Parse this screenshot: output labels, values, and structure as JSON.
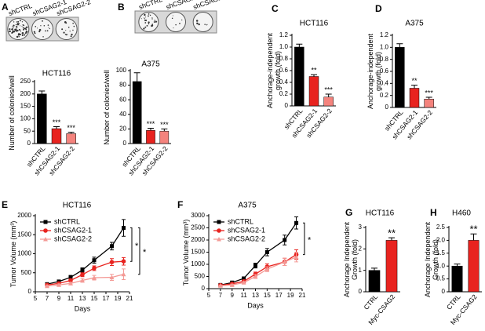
{
  "chart_data": [
    {
      "type": "bar",
      "panel": "A",
      "title": "HCT116",
      "ylabel": "Number of colonies/well",
      "well_labels": [
        "shCTRL",
        "shCSAG2-1",
        "shCSAG2-2"
      ],
      "categories": [
        "shCTRL",
        "shCSAG2-1",
        "shCSAG2-2"
      ],
      "values": [
        200,
        60,
        40
      ],
      "errors": [
        12,
        8,
        6
      ],
      "colors": [
        "#000000",
        "#e8231f",
        "#f4837d"
      ],
      "significance": [
        null,
        "***",
        "***"
      ],
      "ylim": [
        0,
        250
      ],
      "yticks": [
        0,
        50,
        100,
        150,
        200,
        250
      ]
    },
    {
      "type": "bar",
      "panel": "B",
      "title": "A375",
      "ylabel": "Number of colonies/well",
      "well_labels": [
        "shCTRL",
        "shCSAG2-1",
        "shCSAG2-2"
      ],
      "categories": [
        "shCTRL",
        "shCSAG2-1",
        "shCSAG2-2"
      ],
      "values": [
        85,
        18,
        17
      ],
      "errors": [
        12,
        3,
        3
      ],
      "colors": [
        "#000000",
        "#e8231f",
        "#f4837d"
      ],
      "significance": [
        null,
        "***",
        "***"
      ],
      "ylim": [
        0,
        100
      ],
      "yticks": [
        0,
        20,
        40,
        60,
        80,
        100
      ]
    },
    {
      "type": "bar",
      "panel": "C",
      "title": "HCT116",
      "ylabel": "Anchorage-independent growth (fold)",
      "categories": [
        "shCTRL",
        "shCSAG2-1",
        "shCSAG2-2"
      ],
      "values": [
        1.0,
        0.5,
        0.15
      ],
      "errors": [
        0.05,
        0.03,
        0.05
      ],
      "colors": [
        "#000000",
        "#e8231f",
        "#f4837d"
      ],
      "significance": [
        null,
        "**",
        "***"
      ],
      "ylim": [
        0,
        1.2
      ],
      "yticks": [
        0,
        0.2,
        0.4,
        0.6,
        0.8,
        {
          "value": 1,
          "label": "1.0"
        },
        1.2
      ]
    },
    {
      "type": "bar",
      "panel": "D",
      "title": "A375",
      "ylabel": "Anchorage-independent growth (fold)",
      "categories": [
        "shCTRL",
        "shCSAG2-1",
        "shCSAG2-2"
      ],
      "values": [
        1.0,
        0.32,
        0.14
      ],
      "errors": [
        0.06,
        0.05,
        0.03
      ],
      "colors": [
        "#000000",
        "#e8231f",
        "#f4837d"
      ],
      "significance": [
        null,
        "**",
        "***"
      ],
      "ylim": [
        0,
        1.2
      ],
      "yticks": [
        0,
        0.2,
        0.4,
        0.6,
        0.8,
        {
          "value": 1,
          "label": "1.0"
        },
        1.2
      ]
    },
    {
      "type": "line",
      "panel": "E",
      "title": "HCT116",
      "ylabel": "Tumor Volume (mm³)",
      "xlabel": "Days",
      "x": [
        7,
        9,
        11,
        13,
        15,
        18,
        20
      ],
      "series": [
        {
          "name": "shCTRL",
          "color": "#000000",
          "marker": "square",
          "values": [
            200,
            270,
            380,
            570,
            830,
            1200,
            1680
          ],
          "errors": [
            30,
            40,
            50,
            60,
            80,
            100,
            220
          ]
        },
        {
          "name": "shCSAG2-1",
          "color": "#e8231f",
          "marker": "circle",
          "values": [
            180,
            220,
            300,
            450,
            620,
            780,
            800
          ],
          "errors": [
            25,
            30,
            40,
            50,
            60,
            90,
            100
          ]
        },
        {
          "name": "shCSAG2-2",
          "color": "#f49a96",
          "marker": "triangle",
          "values": [
            150,
            180,
            220,
            300,
            370,
            380,
            460
          ],
          "errors": [
            20,
            25,
            30,
            50,
            60,
            80,
            140
          ]
        }
      ],
      "significance": [
        "*",
        "*"
      ],
      "xlim": [
        5,
        21
      ],
      "xticks": [
        5,
        7,
        9,
        11,
        13,
        15,
        17,
        19,
        21
      ],
      "ylim": [
        0,
        2000
      ],
      "yticks": [
        0,
        500,
        1000,
        1500,
        2000
      ]
    },
    {
      "type": "line",
      "panel": "F",
      "title": "A375",
      "ylabel": "Tumor Volume (mm³)",
      "xlabel": "Days",
      "x": [
        7,
        9,
        11,
        13,
        15,
        18,
        20
      ],
      "series": [
        {
          "name": "shCTRL",
          "color": "#000000",
          "marker": "square",
          "values": [
            150,
            250,
            420,
            950,
            1500,
            2000,
            2700
          ],
          "errors": [
            30,
            40,
            60,
            100,
            150,
            200,
            250
          ]
        },
        {
          "name": "shCSAG2-1",
          "color": "#e8231f",
          "marker": "circle",
          "values": [
            140,
            200,
            300,
            600,
            900,
            1100,
            1400
          ],
          "errors": [
            25,
            30,
            50,
            80,
            120,
            150,
            200
          ]
        },
        {
          "name": "shCSAG2-2",
          "color": "#f49a96",
          "marker": "triangle",
          "values": [
            120,
            150,
            250,
            500,
            800,
            1100,
            1300
          ],
          "errors": [
            20,
            30,
            40,
            80,
            100,
            150,
            200
          ]
        }
      ],
      "significance": [
        "*"
      ],
      "xlim": [
        5,
        21
      ],
      "xticks": [
        5,
        7,
        9,
        11,
        13,
        15,
        17,
        19,
        21
      ],
      "ylim": [
        0,
        3000
      ],
      "yticks": [
        0,
        500,
        1000,
        1500,
        2000,
        2500,
        3000
      ]
    },
    {
      "type": "bar",
      "panel": "G",
      "title": "HCT116",
      "ylabel": "Anchorage Independent Growth (fold)",
      "categories": [
        "CTRL",
        "Myc-CSAG2"
      ],
      "values": [
        1.0,
        2.4
      ],
      "errors": [
        0.1,
        0.12
      ],
      "colors": [
        "#000000",
        "#e8231f"
      ],
      "significance": [
        null,
        "**"
      ],
      "ylim": [
        0,
        3
      ],
      "yticks": [
        0,
        1,
        2,
        3
      ]
    },
    {
      "type": "bar",
      "panel": "H",
      "title": "H460",
      "ylabel": "Anchorage Independent Growth (fold)",
      "categories": [
        "CTRL",
        "Myc-CSAG2"
      ],
      "values": [
        1.0,
        2.0
      ],
      "errors": [
        0.08,
        0.25
      ],
      "colors": [
        "#000000",
        "#e8231f"
      ],
      "significance": [
        null,
        "**"
      ],
      "ylim": [
        0,
        2.5
      ],
      "yticks": [
        0,
        0.5,
        {
          "value": 1,
          "label": "1.0"
        },
        1.5,
        {
          "value": 2,
          "label": "2.0"
        },
        2.5
      ]
    }
  ]
}
